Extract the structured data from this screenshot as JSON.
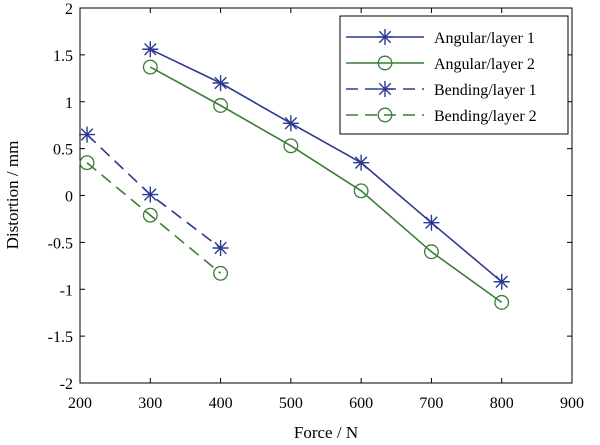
{
  "chart_data": {
    "type": "line",
    "xlabel": "Force / N",
    "ylabel": "Distortion / mm",
    "xlim": [
      200,
      900
    ],
    "ylim": [
      -2,
      2
    ],
    "xticks": [
      200,
      300,
      400,
      500,
      600,
      700,
      800,
      900
    ],
    "yticks": [
      -2,
      -1.5,
      -1,
      -0.5,
      0,
      0.5,
      1,
      1.5,
      2
    ],
    "xtick_labels": [
      "200",
      "300",
      "400",
      "500",
      "600",
      "700",
      "800",
      "900"
    ],
    "ytick_labels": [
      "-2",
      "-1.5",
      "-1",
      "-0.5",
      "0",
      "0.5",
      "1",
      "1.5",
      "2"
    ],
    "grid": false,
    "legend_position": "top-right",
    "series": [
      {
        "name": "Angular/layer 1",
        "x": [
          300,
          400,
          500,
          600,
          700,
          800
        ],
        "y": [
          1.56,
          1.2,
          0.77,
          0.35,
          -0.29,
          -0.92
        ],
        "color": "#2b3990",
        "marker": "asterisk",
        "line": "solid"
      },
      {
        "name": "Angular/layer 2",
        "x": [
          300,
          400,
          500,
          600,
          700,
          800
        ],
        "y": [
          1.37,
          0.96,
          0.53,
          0.05,
          -0.6,
          -1.14
        ],
        "color": "#3a7d35",
        "marker": "circle",
        "line": "solid"
      },
      {
        "name": "Bending/layer 1",
        "x": [
          210,
          300,
          400
        ],
        "y": [
          0.65,
          0.01,
          -0.56
        ],
        "color": "#2b3990",
        "marker": "asterisk",
        "line": "dashed"
      },
      {
        "name": "Bending/layer 2",
        "x": [
          210,
          300,
          400
        ],
        "y": [
          0.35,
          -0.21,
          -0.83
        ],
        "color": "#3a7d35",
        "marker": "circle",
        "line": "dashed"
      }
    ]
  }
}
